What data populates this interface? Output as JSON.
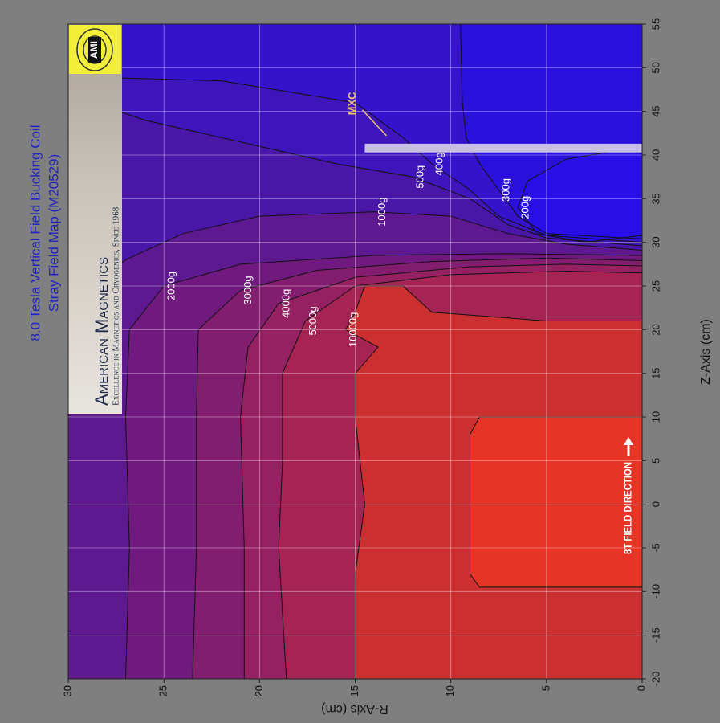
{
  "chart_data": {
    "type": "contour",
    "title": "8.0 Tesla Vertical Field Bucking Coil",
    "subtitle": "Stray Field Map (M20529)",
    "x_label": "Z-Axis (cm)",
    "y_label": "R-Axis (cm)",
    "xlim": [
      -20,
      55
    ],
    "ylim": [
      0,
      30
    ],
    "xticks": [
      -20,
      -15,
      -10,
      -5,
      0,
      5,
      10,
      15,
      20,
      25,
      30,
      35,
      40,
      45,
      50,
      55
    ],
    "yticks": [
      0,
      5,
      10,
      15,
      20,
      25,
      30
    ],
    "grid": true,
    "background_color": "#2b10dc",
    "contours": [
      {
        "label": "300g",
        "color": "#3512cc",
        "z": [
          55,
          46,
          42,
          39,
          36,
          33,
          31,
          30.4
        ],
        "r": [
          9.5,
          9.4,
          9.2,
          8.5,
          7.5,
          6.5,
          5,
          0
        ]
      },
      {
        "label": "400g",
        "color": "#3e14bb",
        "z": [
          49,
          48.5,
          46,
          42,
          39,
          36,
          33,
          30.8,
          30.0
        ],
        "r": [
          30,
          22,
          15,
          12.5,
          11,
          9,
          7.5,
          5,
          0
        ]
      },
      {
        "label": "500g",
        "color": "#4a16a8",
        "z": [
          47,
          44,
          41,
          39,
          37.5,
          35,
          32,
          30.5,
          29.6
        ],
        "r": [
          30,
          26,
          20,
          16,
          12,
          9,
          7,
          5,
          0
        ]
      },
      {
        "label": "1000g",
        "color": "#5e1890",
        "z": [
          22,
          28,
          31,
          33,
          33.5,
          33,
          31,
          29.8,
          29.1
        ],
        "r": [
          30,
          27,
          24,
          20,
          14,
          10,
          7,
          4,
          0
        ]
      },
      {
        "label": "2000g",
        "color": "#701a80",
        "z": [
          -20,
          -5,
          10,
          20,
          25,
          27.5,
          28.5,
          28.7,
          28.5
        ],
        "r": [
          27,
          26.8,
          27,
          26.8,
          25,
          21,
          14,
          7,
          0
        ]
      },
      {
        "label": "3000g",
        "color": "#831d70",
        "z": [
          -20,
          -5,
          10,
          20,
          24.5,
          26.8,
          27.8,
          28.2,
          27.9
        ],
        "r": [
          23.5,
          23.3,
          23.3,
          23.2,
          21,
          17,
          11,
          5,
          0
        ]
      },
      {
        "label": "4000g",
        "color": "#952062",
        "z": [
          -20,
          -5,
          10,
          18,
          23,
          26,
          27.2,
          27.5,
          27.3
        ],
        "r": [
          20.8,
          20.8,
          21,
          20.6,
          19,
          15,
          9,
          4,
          0
        ]
      },
      {
        "label": "5000g",
        "color": "#a62454",
        "z": [
          -20,
          -5,
          5,
          15,
          21,
          25,
          26.3,
          26.7,
          26.5
        ],
        "r": [
          18.6,
          19,
          18.8,
          18.8,
          17.6,
          15,
          10,
          4,
          0
        ]
      },
      {
        "label": "10000g",
        "color": "#cc2f30",
        "z": [
          -20,
          -8,
          0,
          10,
          15,
          18,
          20,
          22,
          25,
          25,
          22,
          21,
          21
        ],
        "r": [
          15,
          15,
          14.5,
          15,
          15,
          13.8,
          15.5,
          15,
          14.5,
          12.5,
          11,
          5,
          0
        ]
      },
      {
        "label": null,
        "color": "#e63526",
        "z": [
          -9.5,
          -9.5,
          -8,
          8,
          10,
          10
        ],
        "r": [
          0,
          8.5,
          9,
          9,
          8.5,
          0
        ]
      },
      {
        "label": "200g",
        "color": "#2a0ee8",
        "z": [
          30.8,
          30,
          31,
          34,
          37,
          39.5,
          41
        ],
        "r": [
          0,
          3,
          5.5,
          6.5,
          6,
          4,
          0
        ]
      }
    ],
    "annotations": {
      "mxc": {
        "text": "MXC",
        "color": "#c8c0e0",
        "z": [
          40.3,
          41.3
        ],
        "r": [
          0,
          14.5
        ]
      },
      "field_direction": "8T FIELD DIRECTION"
    }
  },
  "logo": {
    "name": "American Magnetics",
    "tagline": "Excellence in Magnetics and Cryogenics, Since 1968",
    "mark": "AMI"
  }
}
